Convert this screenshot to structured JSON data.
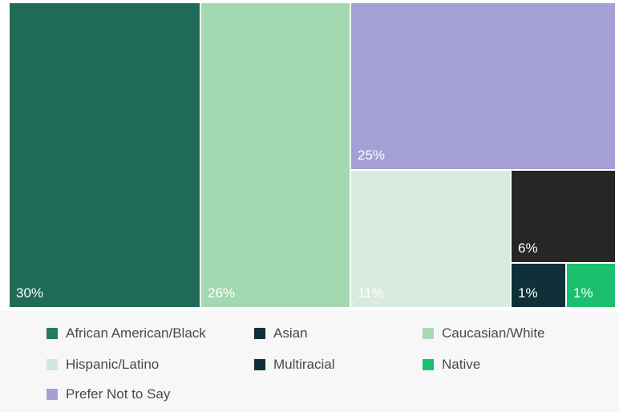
{
  "chart_data": {
    "type": "treemap",
    "title": "",
    "series": [
      {
        "name": "African American/Black",
        "value": 30,
        "label": "30%",
        "color": "#1f6b58"
      },
      {
        "name": "Caucasian/White",
        "value": 26,
        "label": "26%",
        "color": "#a3d8b1"
      },
      {
        "name": "Prefer Not to Say",
        "value": 25,
        "label": "25%",
        "color": "#a49fd4"
      },
      {
        "name": "Hispanic/Latino",
        "value": 11,
        "label": "11%",
        "color": "#d9ebe0"
      },
      {
        "name": "Multiracial",
        "value": 6,
        "label": "6%",
        "color": "#262626"
      },
      {
        "name": "Asian",
        "value": 1,
        "label": "1%",
        "color": "#0f3038"
      },
      {
        "name": "Native",
        "value": 1,
        "label": "1%",
        "color": "#1cbf6e"
      }
    ],
    "legend": {
      "placement": "bottom",
      "items": [
        {
          "name": "African American/Black",
          "color": "#267a63"
        },
        {
          "name": "Asian",
          "color": "#0f3038"
        },
        {
          "name": "Caucasian/White",
          "color": "#a8dab7"
        },
        {
          "name": "Hispanic/Latino",
          "color": "#cfe8d8"
        },
        {
          "name": "Multiracial",
          "color": "#0f3038"
        },
        {
          "name": "Native",
          "color": "#1cbf6e"
        },
        {
          "name": "Prefer Not to Say",
          "color": "#a49fd4"
        }
      ]
    }
  }
}
